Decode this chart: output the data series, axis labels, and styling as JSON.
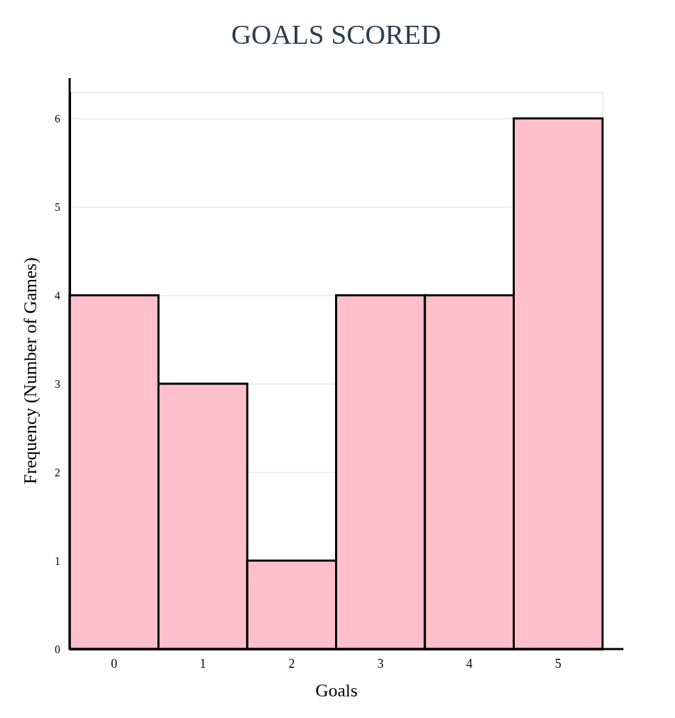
{
  "chart_data": {
    "type": "bar",
    "title": "GOALS SCORED",
    "xlabel": "Goals",
    "ylabel": "Frequency (Number of Games)",
    "categories": [
      "0",
      "1",
      "2",
      "3",
      "4",
      "5"
    ],
    "values": [
      4,
      3,
      1,
      4,
      4,
      6
    ],
    "color": "#ffc0cb",
    "ylim": [
      0,
      6.3
    ],
    "yticks": [
      0,
      1,
      2,
      3,
      4,
      5,
      6
    ],
    "grid": "y"
  }
}
